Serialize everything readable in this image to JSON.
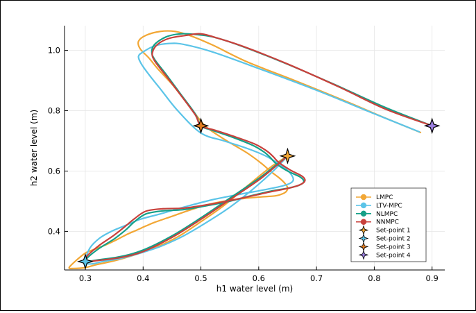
{
  "chart_data": {
    "type": "line",
    "title": "",
    "xlabel": "h1 water level (m)",
    "ylabel": "h2 water level (m)",
    "xlim": [
      0.264,
      0.922
    ],
    "ylim": [
      0.272,
      1.082
    ],
    "xticks": [
      0.3,
      0.4,
      0.5,
      0.6,
      0.7,
      0.8,
      0.9
    ],
    "yticks": [
      0.4,
      0.6,
      0.8,
      1.0
    ],
    "xtick_labels": [
      "0.3",
      "0.4",
      "0.5",
      "0.6",
      "0.7",
      "0.8",
      "0.9"
    ],
    "ytick_labels": [
      "0.4",
      "0.6",
      "0.8",
      "1.0"
    ],
    "grid": true,
    "legend_position": "bottom-right",
    "series": [
      {
        "name": "LMPC",
        "color": "#F2A735",
        "x": [
          0.88,
          0.82,
          0.75,
          0.66,
          0.58,
          0.52,
          0.48,
          0.455,
          0.43,
          0.405,
          0.392,
          0.395,
          0.41,
          0.425,
          0.45,
          0.47,
          0.49,
          0.51,
          0.545,
          0.58,
          0.605,
          0.62,
          0.635,
          0.645,
          0.65,
          0.648,
          0.642,
          0.63,
          0.61,
          0.59,
          0.57,
          0.54,
          0.51,
          0.48,
          0.45,
          0.42,
          0.405,
          0.39,
          0.372,
          0.355,
          0.335,
          0.315,
          0.3,
          0.285,
          0.272,
          0.28,
          0.3,
          0.32,
          0.345,
          0.365,
          0.39,
          0.42,
          0.46,
          0.5,
          0.54,
          0.58,
          0.62,
          0.65
        ],
        "y": [
          0.728,
          0.775,
          0.832,
          0.902,
          0.962,
          1.018,
          1.05,
          1.063,
          1.063,
          1.05,
          1.03,
          1.005,
          0.975,
          0.94,
          0.888,
          0.84,
          0.79,
          0.745,
          0.7,
          0.66,
          0.625,
          0.6,
          0.578,
          0.56,
          0.545,
          0.533,
          0.525,
          0.518,
          0.515,
          0.512,
          0.508,
          0.5,
          0.488,
          0.47,
          0.45,
          0.43,
          0.418,
          0.405,
          0.39,
          0.373,
          0.355,
          0.34,
          0.328,
          0.305,
          0.28,
          0.277,
          0.28,
          0.29,
          0.3,
          0.31,
          0.325,
          0.345,
          0.382,
          0.432,
          0.486,
          0.55,
          0.612,
          0.65
        ]
      },
      {
        "name": "LTV-MPC",
        "color": "#5BC4E8",
        "x": [
          0.878,
          0.8,
          0.7,
          0.6,
          0.52,
          0.47,
          0.445,
          0.42,
          0.4,
          0.392,
          0.397,
          0.41,
          0.43,
          0.46,
          0.5,
          0.54,
          0.58,
          0.61,
          0.63,
          0.645,
          0.655,
          0.66,
          0.655,
          0.64,
          0.61,
          0.57,
          0.52,
          0.47,
          0.43,
          0.395,
          0.37,
          0.345,
          0.325,
          0.308,
          0.3,
          0.31,
          0.33,
          0.36,
          0.39,
          0.43,
          0.47,
          0.51,
          0.55,
          0.59,
          0.625,
          0.65
        ],
        "y": [
          0.73,
          0.79,
          0.868,
          0.94,
          0.995,
          1.02,
          1.023,
          1.015,
          0.995,
          0.98,
          0.955,
          0.92,
          0.872,
          0.8,
          0.726,
          0.7,
          0.675,
          0.652,
          0.63,
          0.61,
          0.592,
          0.572,
          0.56,
          0.55,
          0.538,
          0.524,
          0.505,
          0.48,
          0.458,
          0.44,
          0.42,
          0.4,
          0.378,
          0.345,
          0.3,
          0.292,
          0.3,
          0.31,
          0.325,
          0.35,
          0.385,
          0.43,
          0.48,
          0.54,
          0.6,
          0.65
        ]
      },
      {
        "name": "NLMPC",
        "color": "#15A088",
        "x": [
          0.9,
          0.82,
          0.73,
          0.64,
          0.565,
          0.52,
          0.49,
          0.465,
          0.44,
          0.42,
          0.415,
          0.42,
          0.44,
          0.465,
          0.49,
          0.5,
          0.52,
          0.555,
          0.59,
          0.61,
          0.62,
          0.63,
          0.65,
          0.672,
          0.678,
          0.67,
          0.65,
          0.62,
          0.58,
          0.55,
          0.51,
          0.47,
          0.435,
          0.405,
          0.385,
          0.37,
          0.35,
          0.325,
          0.305,
          0.3,
          0.32,
          0.36,
          0.4,
          0.45,
          0.5,
          0.55,
          0.6,
          0.63,
          0.65
        ],
        "y": [
          0.75,
          0.81,
          0.888,
          0.962,
          1.018,
          1.045,
          1.053,
          1.055,
          1.045,
          1.02,
          0.995,
          0.97,
          0.92,
          0.855,
          0.79,
          0.75,
          0.735,
          0.712,
          0.685,
          0.662,
          0.645,
          0.625,
          0.6,
          0.58,
          0.565,
          0.553,
          0.543,
          0.533,
          0.515,
          0.5,
          0.485,
          0.472,
          0.468,
          0.458,
          0.432,
          0.405,
          0.375,
          0.345,
          0.315,
          0.3,
          0.305,
          0.316,
          0.338,
          0.385,
          0.445,
          0.51,
          0.575,
          0.62,
          0.65
        ]
      },
      {
        "name": "NNMPC",
        "color": "#C8413C",
        "x": [
          0.9,
          0.82,
          0.74,
          0.65,
          0.575,
          0.53,
          0.5,
          0.475,
          0.445,
          0.425,
          0.416,
          0.42,
          0.44,
          0.465,
          0.49,
          0.5,
          0.525,
          0.56,
          0.595,
          0.615,
          0.625,
          0.635,
          0.655,
          0.675,
          0.68,
          0.672,
          0.652,
          0.62,
          0.58,
          0.55,
          0.51,
          0.47,
          0.435,
          0.405,
          0.385,
          0.368,
          0.348,
          0.323,
          0.303,
          0.3,
          0.32,
          0.36,
          0.4,
          0.45,
          0.5,
          0.55,
          0.6,
          0.63,
          0.65
        ],
        "y": [
          0.75,
          0.805,
          0.878,
          0.955,
          1.012,
          1.04,
          1.055,
          1.05,
          1.04,
          1.02,
          0.992,
          0.965,
          0.915,
          0.852,
          0.787,
          0.75,
          0.735,
          0.713,
          0.688,
          0.665,
          0.648,
          0.628,
          0.603,
          0.583,
          0.568,
          0.555,
          0.543,
          0.531,
          0.514,
          0.502,
          0.488,
          0.477,
          0.475,
          0.467,
          0.442,
          0.415,
          0.385,
          0.352,
          0.318,
          0.3,
          0.303,
          0.313,
          0.333,
          0.38,
          0.44,
          0.505,
          0.57,
          0.617,
          0.65
        ]
      }
    ],
    "setpoints": [
      {
        "name": "Set-point 1",
        "x": 0.65,
        "y": 0.65,
        "color": "#F2A735"
      },
      {
        "name": "Set-point 2",
        "x": 0.3,
        "y": 0.3,
        "color": "#5BC4E8"
      },
      {
        "name": "Set-point 3",
        "x": 0.5,
        "y": 0.75,
        "color": "#E07B20"
      },
      {
        "name": "Set-point 4",
        "x": 0.9,
        "y": 0.75,
        "color": "#9B7FE0"
      }
    ]
  }
}
